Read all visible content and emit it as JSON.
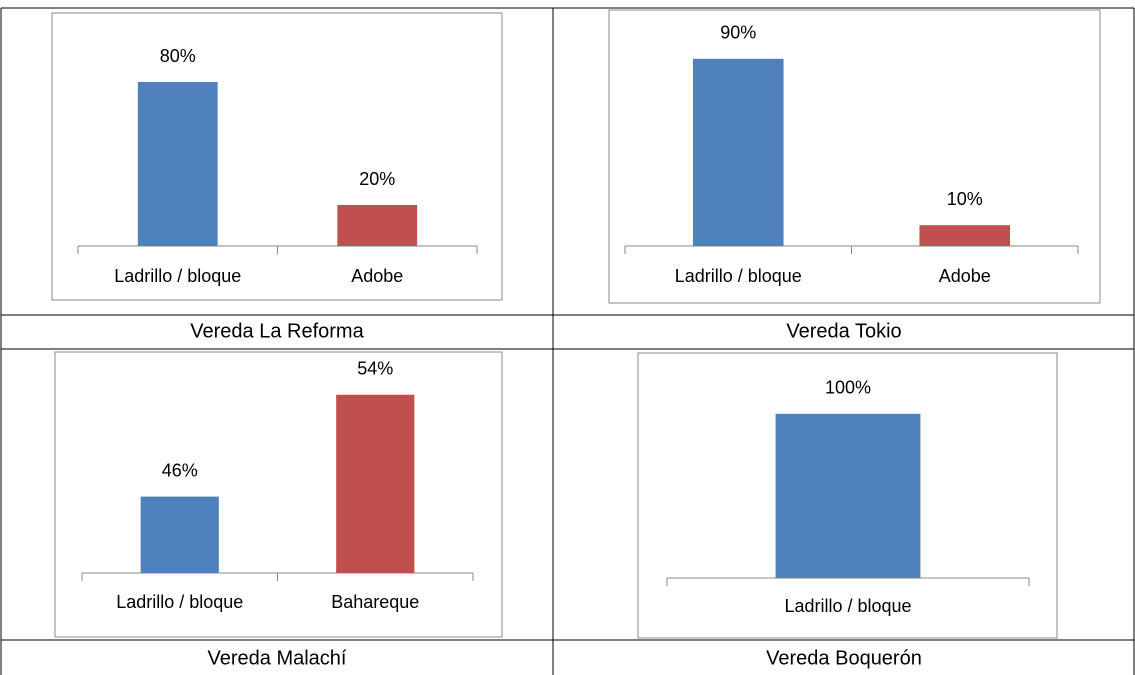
{
  "chart_data": [
    {
      "type": "bar",
      "title": "Vereda La Reforma",
      "categories": [
        "Ladrillo / bloque",
        "Adobe"
      ],
      "values": [
        80,
        20
      ],
      "value_labels": [
        "80%",
        "20%"
      ],
      "colors": [
        "#4f81bd",
        "#c0504d"
      ],
      "ylim": [
        0,
        90
      ]
    },
    {
      "type": "bar",
      "title": "Vereda Tokio",
      "categories": [
        "Ladrillo / bloque",
        "Adobe"
      ],
      "values": [
        90,
        10
      ],
      "value_labels": [
        "90%",
        "10%"
      ],
      "colors": [
        "#4f81bd",
        "#c0504d"
      ],
      "ylim": [
        0,
        100
      ]
    },
    {
      "type": "bar",
      "title": "Vereda Malachí",
      "categories": [
        "Ladrillo / bloque",
        "Bahareque"
      ],
      "values": [
        46,
        54
      ],
      "value_labels": [
        "46%",
        "54%"
      ],
      "colors": [
        "#4f81bd",
        "#c0504d"
      ],
      "ylim": [
        40,
        55
      ]
    },
    {
      "type": "bar",
      "title": "Vereda Boquerón",
      "categories": [
        "Ladrillo / bloque"
      ],
      "values": [
        100
      ],
      "value_labels": [
        "100%"
      ],
      "colors": [
        "#4f81bd"
      ],
      "ylim": [
        0,
        120
      ]
    }
  ]
}
